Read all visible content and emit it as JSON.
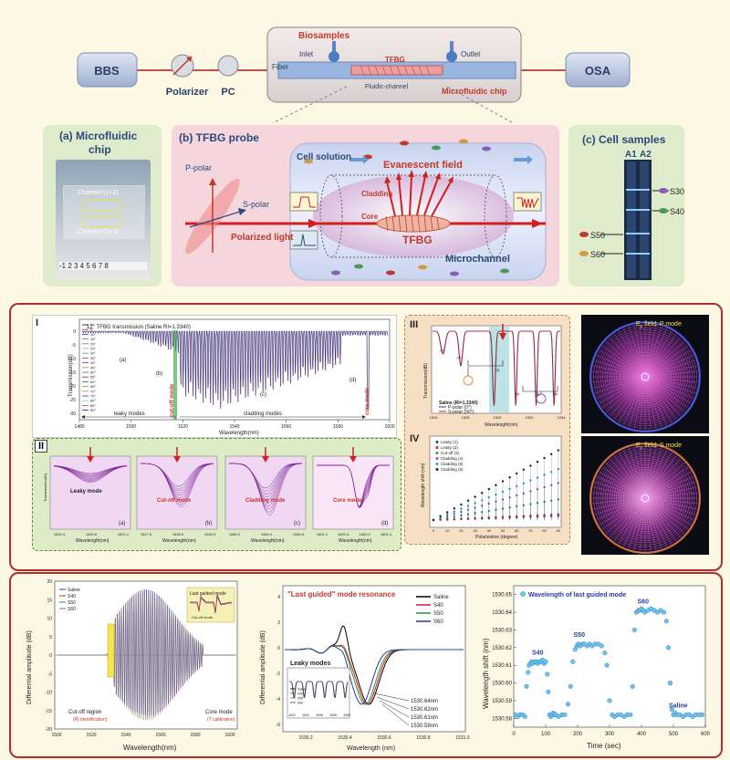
{
  "setup": {
    "bbs": "BBS",
    "polarizer": "Polarizer",
    "pc": "PC",
    "osa": "OSA",
    "biosamples": "Biosamples",
    "inlet": "Inlet",
    "outlet": "Outlet",
    "fiber": "Fiber",
    "tfbg": "TFBG",
    "fluidic_channel": "Fluidic-channel",
    "microfluidic_chip": "Microfluidic chip"
  },
  "panel_a": {
    "title_line1": "(a) Microfluidic",
    "title_line2": "chip",
    "channel_top": "Channel (1+2)",
    "channel_bottom": "Channel (3+4)",
    "ruler": "-1 2 3 4 5 6 7 8"
  },
  "panel_b": {
    "title": "(b) TFBG probe",
    "cell_solution": "Cell solution",
    "evanescent_field": "Evanescent field",
    "cladding": "Cladding",
    "core": "Core",
    "tfbg": "TFBG",
    "p_polar": "P-polar",
    "s_polar": "S-polar",
    "polarized_light": "Polarized light",
    "microchannel": "Microchannel"
  },
  "panel_c": {
    "title": "(c) Cell samples",
    "a1": "A1",
    "a2": "A2",
    "s30": "S30",
    "s40": "S40",
    "s50": "S50",
    "s60": "S60"
  },
  "mid": {
    "roman1": "I",
    "roman2": "II",
    "roman3": "III",
    "roman4": "IV",
    "p1_title": "12° TFBG transmission (Saline RI=1.3340)",
    "p1_ylabel": "Transmission(dB)",
    "p1_xlabel": "Wavelength(nm)",
    "p1_xticks": [
      "1480",
      "1500",
      "1520",
      "1540",
      "1560",
      "1580",
      "1600"
    ],
    "p1_yticks": [
      "0",
      "-5",
      "-10",
      "-15",
      "-20",
      "-25",
      "-30"
    ],
    "p1_legend": [
      "0°",
      "5°",
      "10°",
      "15°",
      "20°",
      "25°",
      "30°",
      "35°",
      "40°",
      "45°",
      "50°",
      "55°",
      "60°",
      "65°",
      "70°",
      "75°",
      "80°",
      "85°",
      "90°"
    ],
    "cutoff_mode": "cut-off mode",
    "core_mode": "core mode",
    "leaky_modes": "leaky modes",
    "cladding_modes": "cladding modes",
    "label_a": "(a)",
    "label_b": "(b)",
    "label_c": "(c)",
    "label_d": "(d)",
    "sub_leaky": "Leaky mode",
    "sub_cutoff": "Cut-off mode",
    "sub_cladding": "Cladding mode",
    "sub_core": "Core mode",
    "sub_xlabel": "Wavelength(nm)",
    "sub_ylabel": "Transmission(dB)",
    "sub_ticks_a": [
      "1520.4",
      "1520.8",
      "1521.2"
    ],
    "sub_ticks_b": [
      "1527.6",
      "1528.0",
      "1528.4"
    ],
    "sub_ticks_c": [
      "1560.2",
      "1560.4",
      "1560.6"
    ],
    "sub_ticks_d": [
      "1601.2",
      "1601.6",
      "1602.0",
      "1602.4"
    ],
    "p3_ylabel": "Transmission(dB)",
    "p3_xlabel": "Wavelength(nm)",
    "p3_saline": "Saline (RI=1.3340)",
    "p3_legend_p": "P-polar (0°)",
    "p3_legend_s": "S-polar (90°)",
    "p3_xticks": [
      "1526",
      "1528",
      "1530",
      "1532",
      "1534"
    ],
    "p3_peaks": [
      "(1)",
      "(2)",
      "(3)",
      "(4)",
      "(5)",
      "(6)"
    ],
    "p4_legend": [
      "Leaky (1)",
      "Leaky (2)",
      "Cut-off (3)",
      "Cladding (4)",
      "Cladding (5)",
      "Cladding (6)"
    ],
    "p4_xlabel": "Polarization (degree)",
    "p4_ylabel": "Wavelength shift (nm)",
    "p4_xticks": [
      "0",
      "10",
      "20",
      "30",
      "40",
      "50",
      "60",
      "70",
      "80",
      "90"
    ],
    "field_p": "E",
    "field_p_sub": "y",
    "field_p_rest": " field: P mode",
    "field_s": "E",
    "field_s_sub": "x",
    "field_s_rest": " field: S mode"
  },
  "bottom": {
    "diff_ylabel": "Differential amplitude (dB)",
    "diff_xlabel": "Wavelength(nm)",
    "diff_legend": [
      "Saline",
      "S40",
      "S50",
      "S60"
    ],
    "diff_xticks": [
      "1500",
      "1520",
      "1540",
      "1560",
      "1580",
      "1600"
    ],
    "diff_yticks": [
      "20",
      "15",
      "10",
      "5",
      "0",
      "-5",
      "-10",
      "-15",
      "-20"
    ],
    "last_guided_mode": "Last guided mode",
    "cutoff_mode": "Cut-off mode",
    "cutoff_region": "Cut-off region",
    "cutoff_region_sub": "(RI identification)",
    "core_mode": "Core mode",
    "core_mode_sub": "(T calibration)",
    "lg_title": "\"Last guided\" mode resonance",
    "lg_legend": [
      "Saline",
      "S40",
      "S50",
      "S60"
    ],
    "lg_ylabel": "Differential amplitude (dB)",
    "lg_xlabel": "Wavelength (nm)",
    "lg_xticks": [
      "1530.2",
      "1530.4",
      "1530.6",
      "1530.8",
      "1531.0"
    ],
    "lg_yticks": [
      "4",
      "2",
      "0",
      "-2",
      "-4",
      "-6"
    ],
    "lg_values": [
      "1530.64nm",
      "1530.62nm",
      "1530.61nm",
      "1530.58nm"
    ],
    "leaky_modes": "Leaky modes",
    "leaky_legend": [
      "Saline",
      "S40",
      "S50",
      "S60"
    ],
    "leaky_xticks": [
      "1522",
      "1524",
      "1526",
      "1528",
      "1530"
    ]
  },
  "chart_data": {
    "type": "scatter",
    "title": "",
    "legend": "Wavelength of last guided mode",
    "xlabel": "Time (sec)",
    "ylabel": "Wavelength shift (nm)",
    "xlim": [
      0,
      600
    ],
    "ylim": [
      1530.575,
      1530.655
    ],
    "xticks": [
      0,
      100,
      200,
      300,
      400,
      500,
      600
    ],
    "yticks": [
      1530.58,
      1530.59,
      1530.6,
      1530.61,
      1530.62,
      1530.63,
      1530.64,
      1530.65
    ],
    "annotations": [
      "S40",
      "S50",
      "S60",
      "Saline"
    ],
    "series": [
      {
        "name": "Wavelength of last guided mode",
        "x": [
          5,
          12,
          20,
          28,
          35,
          40,
          45,
          48,
          52,
          56,
          60,
          65,
          70,
          75,
          80,
          85,
          90,
          95,
          100,
          105,
          108,
          112,
          116,
          120,
          124,
          128,
          132,
          140,
          150,
          160,
          170,
          178,
          185,
          192,
          198,
          202,
          208,
          215,
          222,
          230,
          238,
          245,
          255,
          265,
          275,
          285,
          292,
          300,
          308,
          316,
          325,
          335,
          345,
          355,
          365,
          372,
          378,
          384,
          390,
          395,
          400,
          405,
          410,
          420,
          430,
          440,
          450,
          460,
          470,
          478,
          484,
          490,
          495,
          500,
          505,
          510,
          520,
          530,
          540,
          550,
          560,
          570,
          580,
          590
        ],
        "y": [
          1530.582,
          1530.581,
          1530.582,
          1530.582,
          1530.581,
          1530.598,
          1530.606,
          1530.61,
          1530.611,
          1530.612,
          1530.611,
          1530.612,
          1530.612,
          1530.611,
          1530.612,
          1530.612,
          1530.613,
          1530.611,
          1530.612,
          1530.605,
          1530.595,
          1530.582,
          1530.581,
          1530.582,
          1530.583,
          1530.582,
          1530.582,
          1530.581,
          1530.582,
          1530.582,
          1530.588,
          1530.598,
          1530.612,
          1530.619,
          1530.621,
          1530.622,
          1530.621,
          1530.622,
          1530.622,
          1530.621,
          1530.622,
          1530.621,
          1530.622,
          1530.622,
          1530.621,
          1530.617,
          1530.61,
          1530.59,
          1530.582,
          1530.581,
          1530.582,
          1530.582,
          1530.581,
          1530.582,
          1530.582,
          1530.598,
          1530.63,
          1530.64,
          1530.641,
          1530.641,
          1530.642,
          1530.641,
          1530.64,
          1530.641,
          1530.642,
          1530.641,
          1530.64,
          1530.641,
          1530.64,
          1530.635,
          1530.62,
          1530.6,
          1530.585,
          1530.582,
          1530.583,
          1530.582,
          1530.582,
          1530.581,
          1530.582,
          1530.582,
          1530.581,
          1530.582,
          1530.582,
          1530.582
        ]
      }
    ]
  }
}
